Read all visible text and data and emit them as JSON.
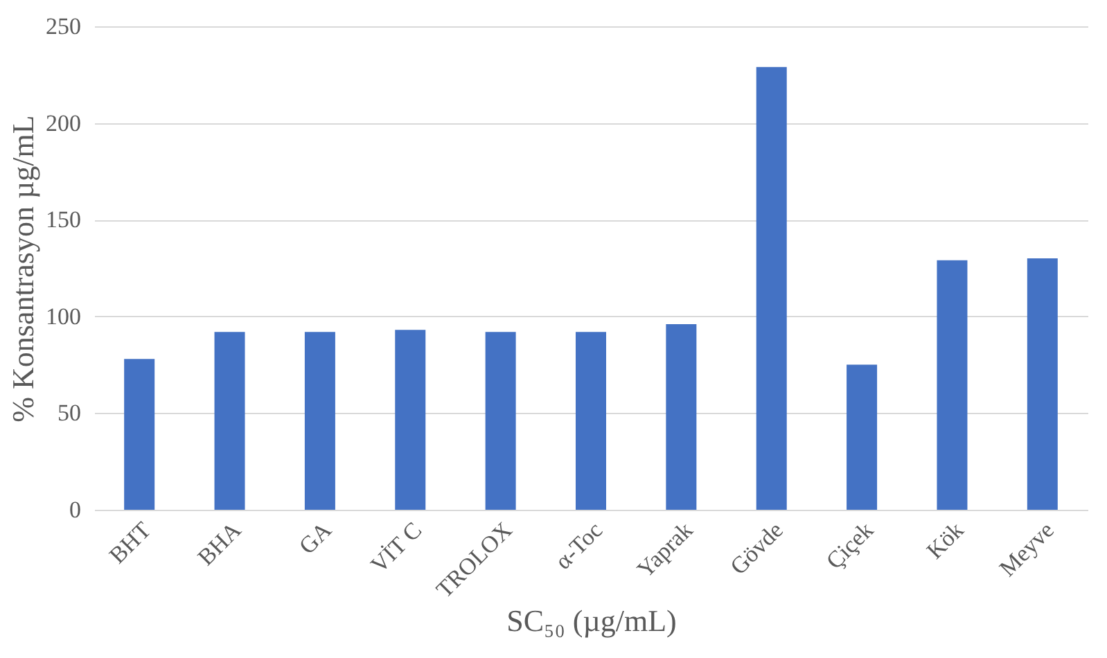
{
  "chart_data": {
    "type": "bar",
    "categories": [
      "BHT",
      "BHA",
      "GA",
      "VİT C",
      "TROLOX",
      "α-Toc",
      "Yaprak",
      "Gövde",
      "Çiçek",
      "Kök",
      "Meyve"
    ],
    "values": [
      78,
      92,
      92,
      93,
      92,
      92,
      96,
      229,
      75,
      129,
      130
    ],
    "color": "#4472c4",
    "xlabel": "SC₅₀ (µg/mL)",
    "ylabel": "% Konsantrasyon µg/mL",
    "ylim": [
      0,
      250
    ],
    "yticks": [
      0,
      50,
      100,
      150,
      200,
      250
    ],
    "grid": "y"
  }
}
